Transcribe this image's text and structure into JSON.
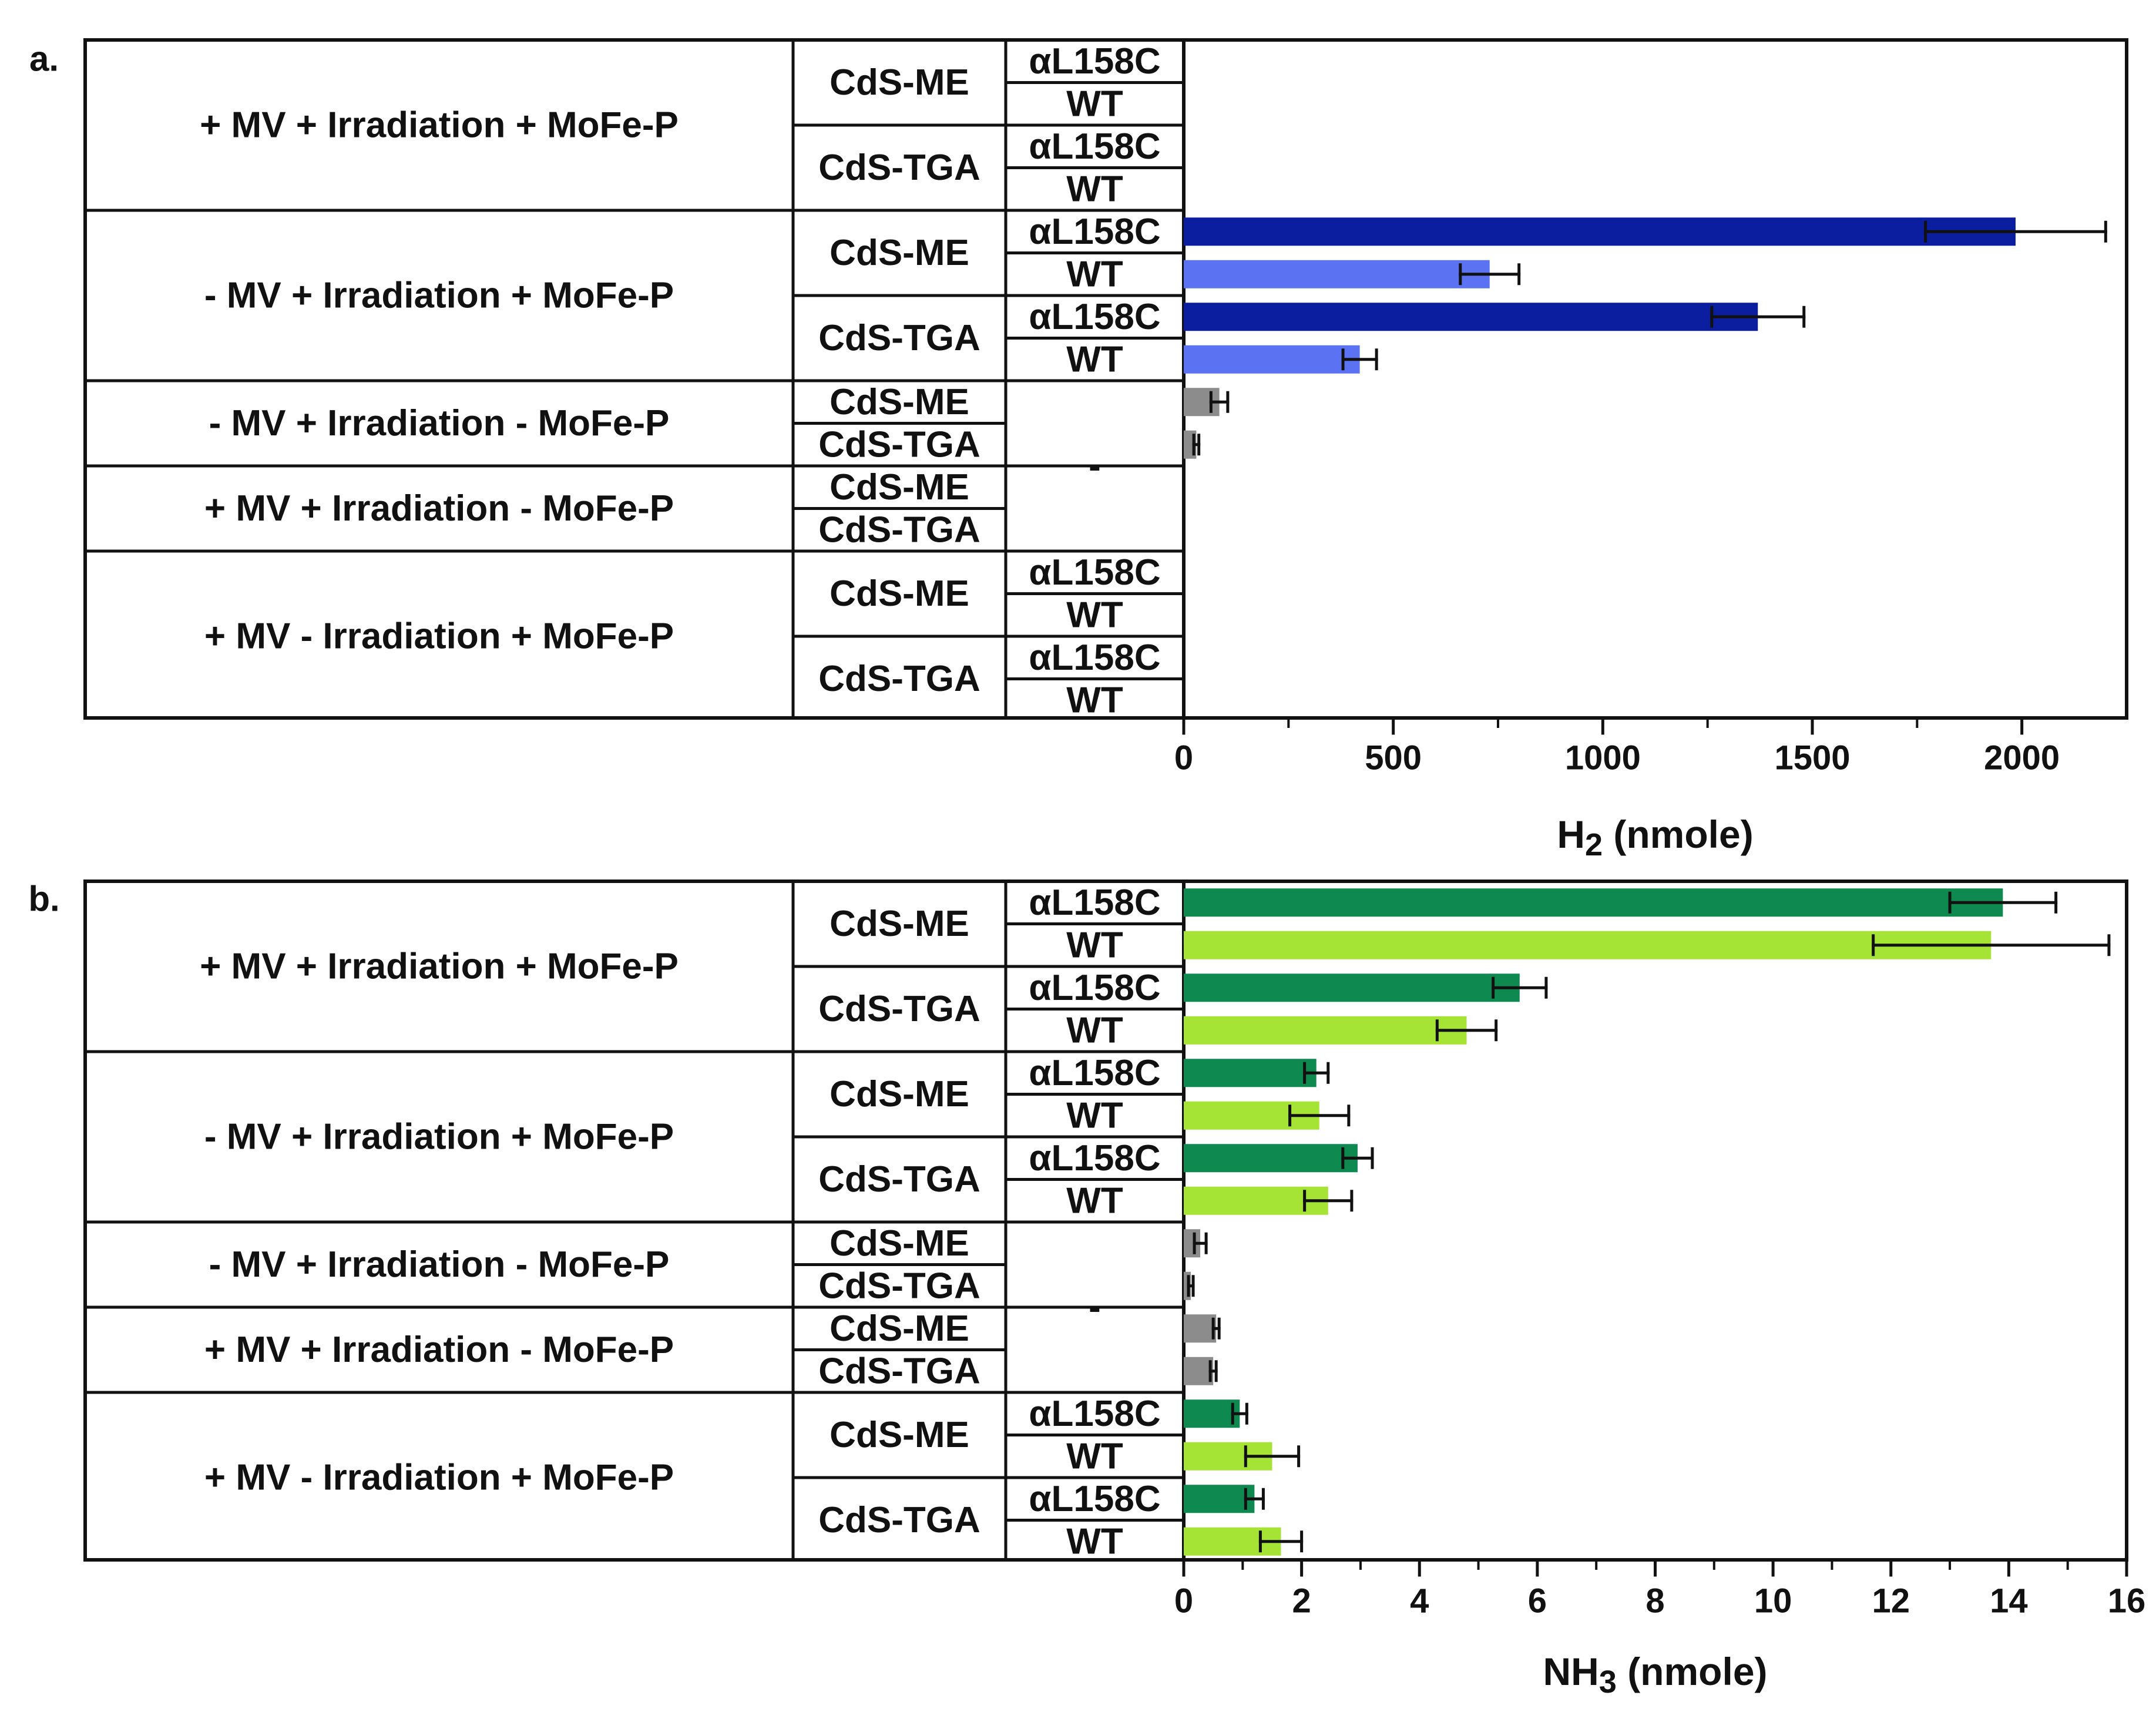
{
  "colors": {
    "mutant_h2": "#0b1ea0",
    "wt_h2": "#5b73f2",
    "mutant_nh3": "#0e8a50",
    "wt_nh3": "#a5e335",
    "control": "#8c8c8c",
    "axis": "#111111"
  },
  "chart_data": [
    {
      "panel_label": "a.",
      "type": "bar",
      "orientation": "horizontal",
      "xlabel_main": "H",
      "xlabel_sub": "2",
      "xlabel_rest": " (nmole)",
      "xlim": [
        0,
        2250
      ],
      "ticks": [
        0,
        500,
        1000,
        1500,
        2000
      ],
      "tick_labels": [
        "0",
        "500",
        "1000",
        "1500",
        "2000"
      ],
      "groups": [
        {
          "condition": "+ MV    + Irradiation    + MoFe-P",
          "kind": "full",
          "samples": [
            {
              "name": "CdS-ME",
              "proteins": [
                {
                  "name": "αL158C",
                  "value": 0,
                  "error": 0
                },
                {
                  "name": "WT",
                  "value": 0,
                  "error": 0
                }
              ]
            },
            {
              "name": "CdS-TGA",
              "proteins": [
                {
                  "name": "αL158C",
                  "value": 0,
                  "error": 0
                },
                {
                  "name": "WT",
                  "value": 0,
                  "error": 0
                }
              ]
            }
          ]
        },
        {
          "condition": "- MV    + Irradiation    + MoFe-P",
          "kind": "full",
          "samples": [
            {
              "name": "CdS-ME",
              "proteins": [
                {
                  "name": "αL158C",
                  "value": 1985,
                  "error": 215
                },
                {
                  "name": "WT",
                  "value": 730,
                  "error": 70
                }
              ]
            },
            {
              "name": "CdS-TGA",
              "proteins": [
                {
                  "name": "αL158C",
                  "value": 1370,
                  "error": 110
                },
                {
                  "name": "WT",
                  "value": 420,
                  "error": 40
                }
              ]
            }
          ]
        },
        {
          "condition": "- MV    + Irradiation    - MoFe-P",
          "kind": "control",
          "protein_label": "-",
          "samples": [
            {
              "name": "CdS-ME",
              "value": 85,
              "error": 20
            },
            {
              "name": "CdS-TGA",
              "value": 30,
              "error": 6
            }
          ]
        },
        {
          "condition": "+ MV    + Irradiation    - MoFe-P",
          "kind": "control",
          "protein_label": "-",
          "samples": [
            {
              "name": "CdS-ME",
              "value": 0,
              "error": 0
            },
            {
              "name": "CdS-TGA",
              "value": 0,
              "error": 0
            }
          ]
        },
        {
          "condition": "+ MV    - Irradiation    + MoFe-P",
          "kind": "full",
          "samples": [
            {
              "name": "CdS-ME",
              "proteins": [
                {
                  "name": "αL158C",
                  "value": 0,
                  "error": 0
                },
                {
                  "name": "WT",
                  "value": 0,
                  "error": 0
                }
              ]
            },
            {
              "name": "CdS-TGA",
              "proteins": [
                {
                  "name": "αL158C",
                  "value": 0,
                  "error": 0
                },
                {
                  "name": "WT",
                  "value": 0,
                  "error": 0
                }
              ]
            }
          ]
        }
      ]
    },
    {
      "panel_label": "b.",
      "type": "bar",
      "orientation": "horizontal",
      "xlabel_main": "NH",
      "xlabel_sub": "3",
      "xlabel_rest": " (nmole)",
      "xlim": [
        0,
        16
      ],
      "ticks": [
        0,
        2,
        4,
        6,
        8,
        10,
        12,
        14,
        16
      ],
      "tick_labels": [
        "0",
        "2",
        "4",
        "6",
        "8",
        "10",
        "12",
        "14",
        "16"
      ],
      "groups": [
        {
          "condition": "+ MV    + Irradiation    + MoFe-P",
          "kind": "full",
          "samples": [
            {
              "name": "CdS-ME",
              "proteins": [
                {
                  "name": "αL158C",
                  "value": 13.9,
                  "error": 0.9
                },
                {
                  "name": "WT",
                  "value": 13.7,
                  "error": 2.0
                }
              ]
            },
            {
              "name": "CdS-TGA",
              "proteins": [
                {
                  "name": "αL158C",
                  "value": 5.7,
                  "error": 0.45
                },
                {
                  "name": "WT",
                  "value": 4.8,
                  "error": 0.5
                }
              ]
            }
          ]
        },
        {
          "condition": "- MV    + Irradiation    + MoFe-P",
          "kind": "full",
          "samples": [
            {
              "name": "CdS-ME",
              "proteins": [
                {
                  "name": "αL158C",
                  "value": 2.25,
                  "error": 0.2
                },
                {
                  "name": "WT",
                  "value": 2.3,
                  "error": 0.5
                }
              ]
            },
            {
              "name": "CdS-TGA",
              "proteins": [
                {
                  "name": "αL158C",
                  "value": 2.95,
                  "error": 0.25
                },
                {
                  "name": "WT",
                  "value": 2.45,
                  "error": 0.4
                }
              ]
            }
          ]
        },
        {
          "condition": "- MV    + Irradiation    - MoFe-P",
          "kind": "control",
          "protein_label": "-",
          "samples": [
            {
              "name": "CdS-ME",
              "value": 0.28,
              "error": 0.1
            },
            {
              "name": "CdS-TGA",
              "value": 0.12,
              "error": 0.04
            }
          ]
        },
        {
          "condition": "+ MV    + Irradiation    - MoFe-P",
          "kind": "control",
          "protein_label": "-",
          "samples": [
            {
              "name": "CdS-ME",
              "value": 0.55,
              "error": 0.05
            },
            {
              "name": "CdS-TGA",
              "value": 0.5,
              "error": 0.05
            }
          ]
        },
        {
          "condition": "+ MV    - Irradiation    + MoFe-P",
          "kind": "full",
          "samples": [
            {
              "name": "CdS-ME",
              "proteins": [
                {
                  "name": "αL158C",
                  "value": 0.95,
                  "error": 0.12
                },
                {
                  "name": "WT",
                  "value": 1.5,
                  "error": 0.45
                }
              ]
            },
            {
              "name": "CdS-TGA",
              "proteins": [
                {
                  "name": "αL158C",
                  "value": 1.2,
                  "error": 0.15
                },
                {
                  "name": "WT",
                  "value": 1.65,
                  "error": 0.35
                }
              ]
            }
          ]
        }
      ]
    }
  ]
}
